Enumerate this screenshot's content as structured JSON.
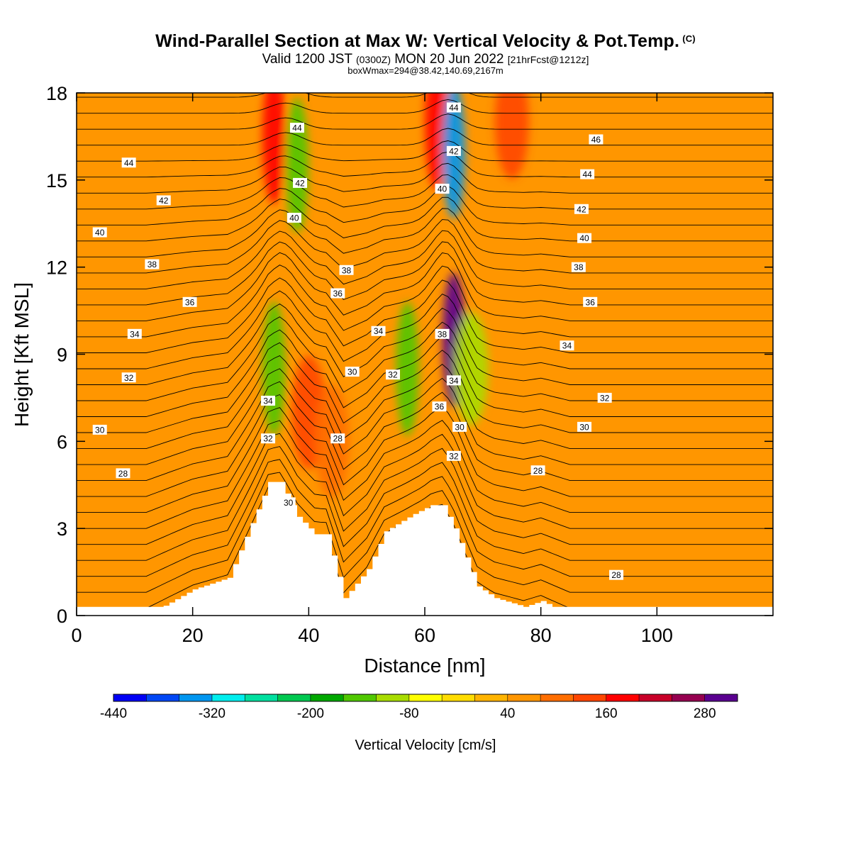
{
  "header": {
    "title": "Wind-Parallel Section at Max W: Vertical Velocity & Pot.Temp.",
    "copyright": "(C)",
    "valid_prefix": "Valid 1200 JST",
    "valid_utc": "(0300Z)",
    "valid_date": "MON 20 Jun 2022",
    "forecast_info": "[21hrFcst@1212z]",
    "box_info": "boxWmax=294@38.42,140.69,2167m"
  },
  "chart_data": {
    "type": "heatmap",
    "xlabel": "Distance [nm]",
    "ylabel": "Height [Kft MSL]",
    "xlim": [
      0,
      120
    ],
    "ylim": [
      0,
      18
    ],
    "x_ticks": [
      "0",
      "20",
      "40",
      "60",
      "80",
      "100"
    ],
    "x_tick_values": [
      0,
      20,
      40,
      60,
      80,
      100
    ],
    "y_ticks": [
      "0",
      "3",
      "6",
      "9",
      "12",
      "15",
      "18"
    ],
    "y_tick_values": [
      0,
      3,
      6,
      9,
      12,
      15,
      18
    ],
    "colorbar": {
      "title": "Vertical Velocity [cm/s]",
      "min": -440,
      "max": 320,
      "step": 40,
      "labels": [
        "-440",
        "-320",
        "-200",
        "-80",
        "40",
        "160",
        "280"
      ],
      "label_values": [
        -440,
        -320,
        -200,
        -80,
        40,
        160,
        280
      ],
      "colors": [
        "#0000f5",
        "#0047f5",
        "#0096f0",
        "#00eeee",
        "#00e0a0",
        "#00c850",
        "#00a800",
        "#50c800",
        "#a8dc00",
        "#ffff00",
        "#ffdc00",
        "#ffb400",
        "#ff9600",
        "#ff6e00",
        "#ff4600",
        "#ff0000",
        "#c80028",
        "#960050",
        "#5a0090"
      ]
    },
    "terrain_profile": {
      "x": [
        0,
        12,
        20,
        26,
        33,
        35,
        38,
        41,
        43,
        46,
        50,
        53,
        58,
        61,
        63,
        65,
        69,
        72,
        77,
        80,
        85,
        120
      ],
      "height": [
        0,
        0,
        0.9,
        1.3,
        4.6,
        4.6,
        3.4,
        2.8,
        2.8,
        0.6,
        1.6,
        2.9,
        3.5,
        3.8,
        3.8,
        3.0,
        1.0,
        0.6,
        0.3,
        0.5,
        0,
        0
      ]
    },
    "velocity_features": [
      {
        "x": 34,
        "y": 16.5,
        "value": 160
      },
      {
        "x": 38,
        "y": 15.5,
        "value": -160
      },
      {
        "x": 34,
        "y": 8.5,
        "value": -160
      },
      {
        "x": 40,
        "y": 7.0,
        "value": 120
      },
      {
        "x": 44,
        "y": 6.0,
        "value": 80
      },
      {
        "x": 57,
        "y": 8.5,
        "value": -160
      },
      {
        "x": 62,
        "y": 17.0,
        "value": 160
      },
      {
        "x": 65,
        "y": 16.0,
        "value": -360
      },
      {
        "x": 65,
        "y": 9.5,
        "value": 280
      },
      {
        "x": 68,
        "y": 8.5,
        "value": -120
      },
      {
        "x": 75,
        "y": 17.0,
        "value": 120
      }
    ],
    "contour_labels": [
      {
        "value": "44",
        "x": 9,
        "y": 15.6
      },
      {
        "value": "42",
        "x": 15,
        "y": 14.3
      },
      {
        "value": "40",
        "x": 4,
        "y": 13.2
      },
      {
        "value": "38",
        "x": 13,
        "y": 12.1
      },
      {
        "value": "36",
        "x": 19.5,
        "y": 10.8
      },
      {
        "value": "34",
        "x": 10,
        "y": 9.7
      },
      {
        "value": "32",
        "x": 9,
        "y": 8.2
      },
      {
        "value": "30",
        "x": 4,
        "y": 6.4
      },
      {
        "value": "28",
        "x": 8,
        "y": 4.9
      },
      {
        "value": "44",
        "x": 38,
        "y": 16.8
      },
      {
        "value": "42",
        "x": 38.5,
        "y": 14.9
      },
      {
        "value": "40",
        "x": 37.5,
        "y": 13.7
      },
      {
        "value": "38",
        "x": 46.5,
        "y": 11.9
      },
      {
        "value": "36",
        "x": 45,
        "y": 11.1
      },
      {
        "value": "34",
        "x": 52,
        "y": 9.8
      },
      {
        "value": "32",
        "x": 54.5,
        "y": 8.3
      },
      {
        "value": "30",
        "x": 47.5,
        "y": 8.4
      },
      {
        "value": "28",
        "x": 45,
        "y": 6.1
      },
      {
        "value": "34",
        "x": 33,
        "y": 7.4
      },
      {
        "value": "32",
        "x": 33,
        "y": 6.1
      },
      {
        "value": "30",
        "x": 36.5,
        "y": 3.9
      },
      {
        "value": "44",
        "x": 65,
        "y": 17.5
      },
      {
        "value": "42",
        "x": 65,
        "y": 16.0
      },
      {
        "value": "40",
        "x": 63,
        "y": 14.7
      },
      {
        "value": "38",
        "x": 63,
        "y": 9.7
      },
      {
        "value": "36",
        "x": 62.5,
        "y": 7.2
      },
      {
        "value": "34",
        "x": 65,
        "y": 8.1
      },
      {
        "value": "30",
        "x": 66,
        "y": 6.5
      },
      {
        "value": "32",
        "x": 65,
        "y": 5.5
      },
      {
        "value": "46",
        "x": 89.5,
        "y": 16.4
      },
      {
        "value": "44",
        "x": 88,
        "y": 15.2
      },
      {
        "value": "42",
        "x": 87,
        "y": 14.0
      },
      {
        "value": "40",
        "x": 87.5,
        "y": 13.0
      },
      {
        "value": "38",
        "x": 86.5,
        "y": 12.0
      },
      {
        "value": "36",
        "x": 88.5,
        "y": 10.8
      },
      {
        "value": "34",
        "x": 84.5,
        "y": 9.3
      },
      {
        "value": "32",
        "x": 91,
        "y": 7.5
      },
      {
        "value": "30",
        "x": 87.5,
        "y": 6.5
      },
      {
        "value": "28",
        "x": 79.5,
        "y": 5.0
      },
      {
        "value": "28",
        "x": 93,
        "y": 1.4
      }
    ]
  }
}
